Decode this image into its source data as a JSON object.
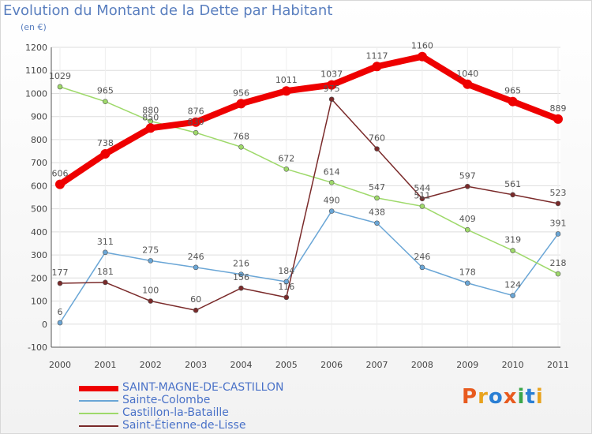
{
  "header": {
    "title": "Evolution du Montant de la Dette par Habitant",
    "unit": "(en €)"
  },
  "logo": {
    "text": "Proxiti",
    "colors": [
      "#e85a1e",
      "#e8a31e",
      "#2a7fd4",
      "#e85a1e",
      "#3aa64a",
      "#2a7fd4",
      "#e8a31e"
    ]
  },
  "chart_data": {
    "type": "line",
    "title": "Evolution du Montant de la Dette par Habitant",
    "ylabel": "(en €)",
    "xlabel": "",
    "categories": [
      "2000",
      "2001",
      "2002",
      "2003",
      "2004",
      "2005",
      "2006",
      "2007",
      "2008",
      "2009",
      "2010",
      "2011"
    ],
    "ylim": [
      -100,
      1200
    ],
    "yticks": [
      "-100",
      "0",
      "100",
      "200",
      "300",
      "400",
      "500",
      "600",
      "700",
      "800",
      "900",
      "1000",
      "1100",
      "1200"
    ],
    "grid": true,
    "legend_position": "bottom-left",
    "series": [
      {
        "name": "SAINT-MAGNE-DE-CASTILLON",
        "color": "#ee0000",
        "bold": true,
        "values": [
          606,
          738,
          850,
          876,
          956,
          1011,
          1037,
          1117,
          1160,
          1040,
          965,
          889
        ],
        "labels": [
          "606",
          "738",
          "850",
          "876",
          "956",
          "1011",
          "1037",
          "1117",
          "1160",
          "1040",
          "965",
          "889"
        ]
      },
      {
        "name": "Sainte-Colombe",
        "color": "#6aa6d6",
        "bold": false,
        "values": [
          6,
          311,
          275,
          246,
          216,
          184,
          490,
          438,
          246,
          178,
          124,
          391
        ],
        "labels": [
          "6",
          "311",
          "275",
          "246",
          "216",
          "184",
          "490",
          "438",
          "246",
          "178",
          "124",
          "391"
        ]
      },
      {
        "name": "Castillon-la-Bataille",
        "color": "#9ed96a",
        "bold": false,
        "values": [
          1029,
          965,
          880,
          830,
          768,
          672,
          614,
          547,
          511,
          409,
          319,
          218
        ],
        "labels": [
          "1029",
          "965",
          "880",
          "830",
          "768",
          "672",
          "614",
          "547",
          "511",
          "409",
          "319",
          "218"
        ]
      },
      {
        "name": "Saint-Étienne-de-Lisse",
        "color": "#7a2a2a",
        "bold": false,
        "values": [
          177,
          181,
          100,
          60,
          156,
          116,
          975,
          760,
          544,
          597,
          561,
          523
        ],
        "labels": [
          "177",
          "181",
          "100",
          "60",
          "156",
          "116",
          "975",
          "760",
          "544",
          "597",
          "561",
          "523"
        ]
      }
    ]
  }
}
